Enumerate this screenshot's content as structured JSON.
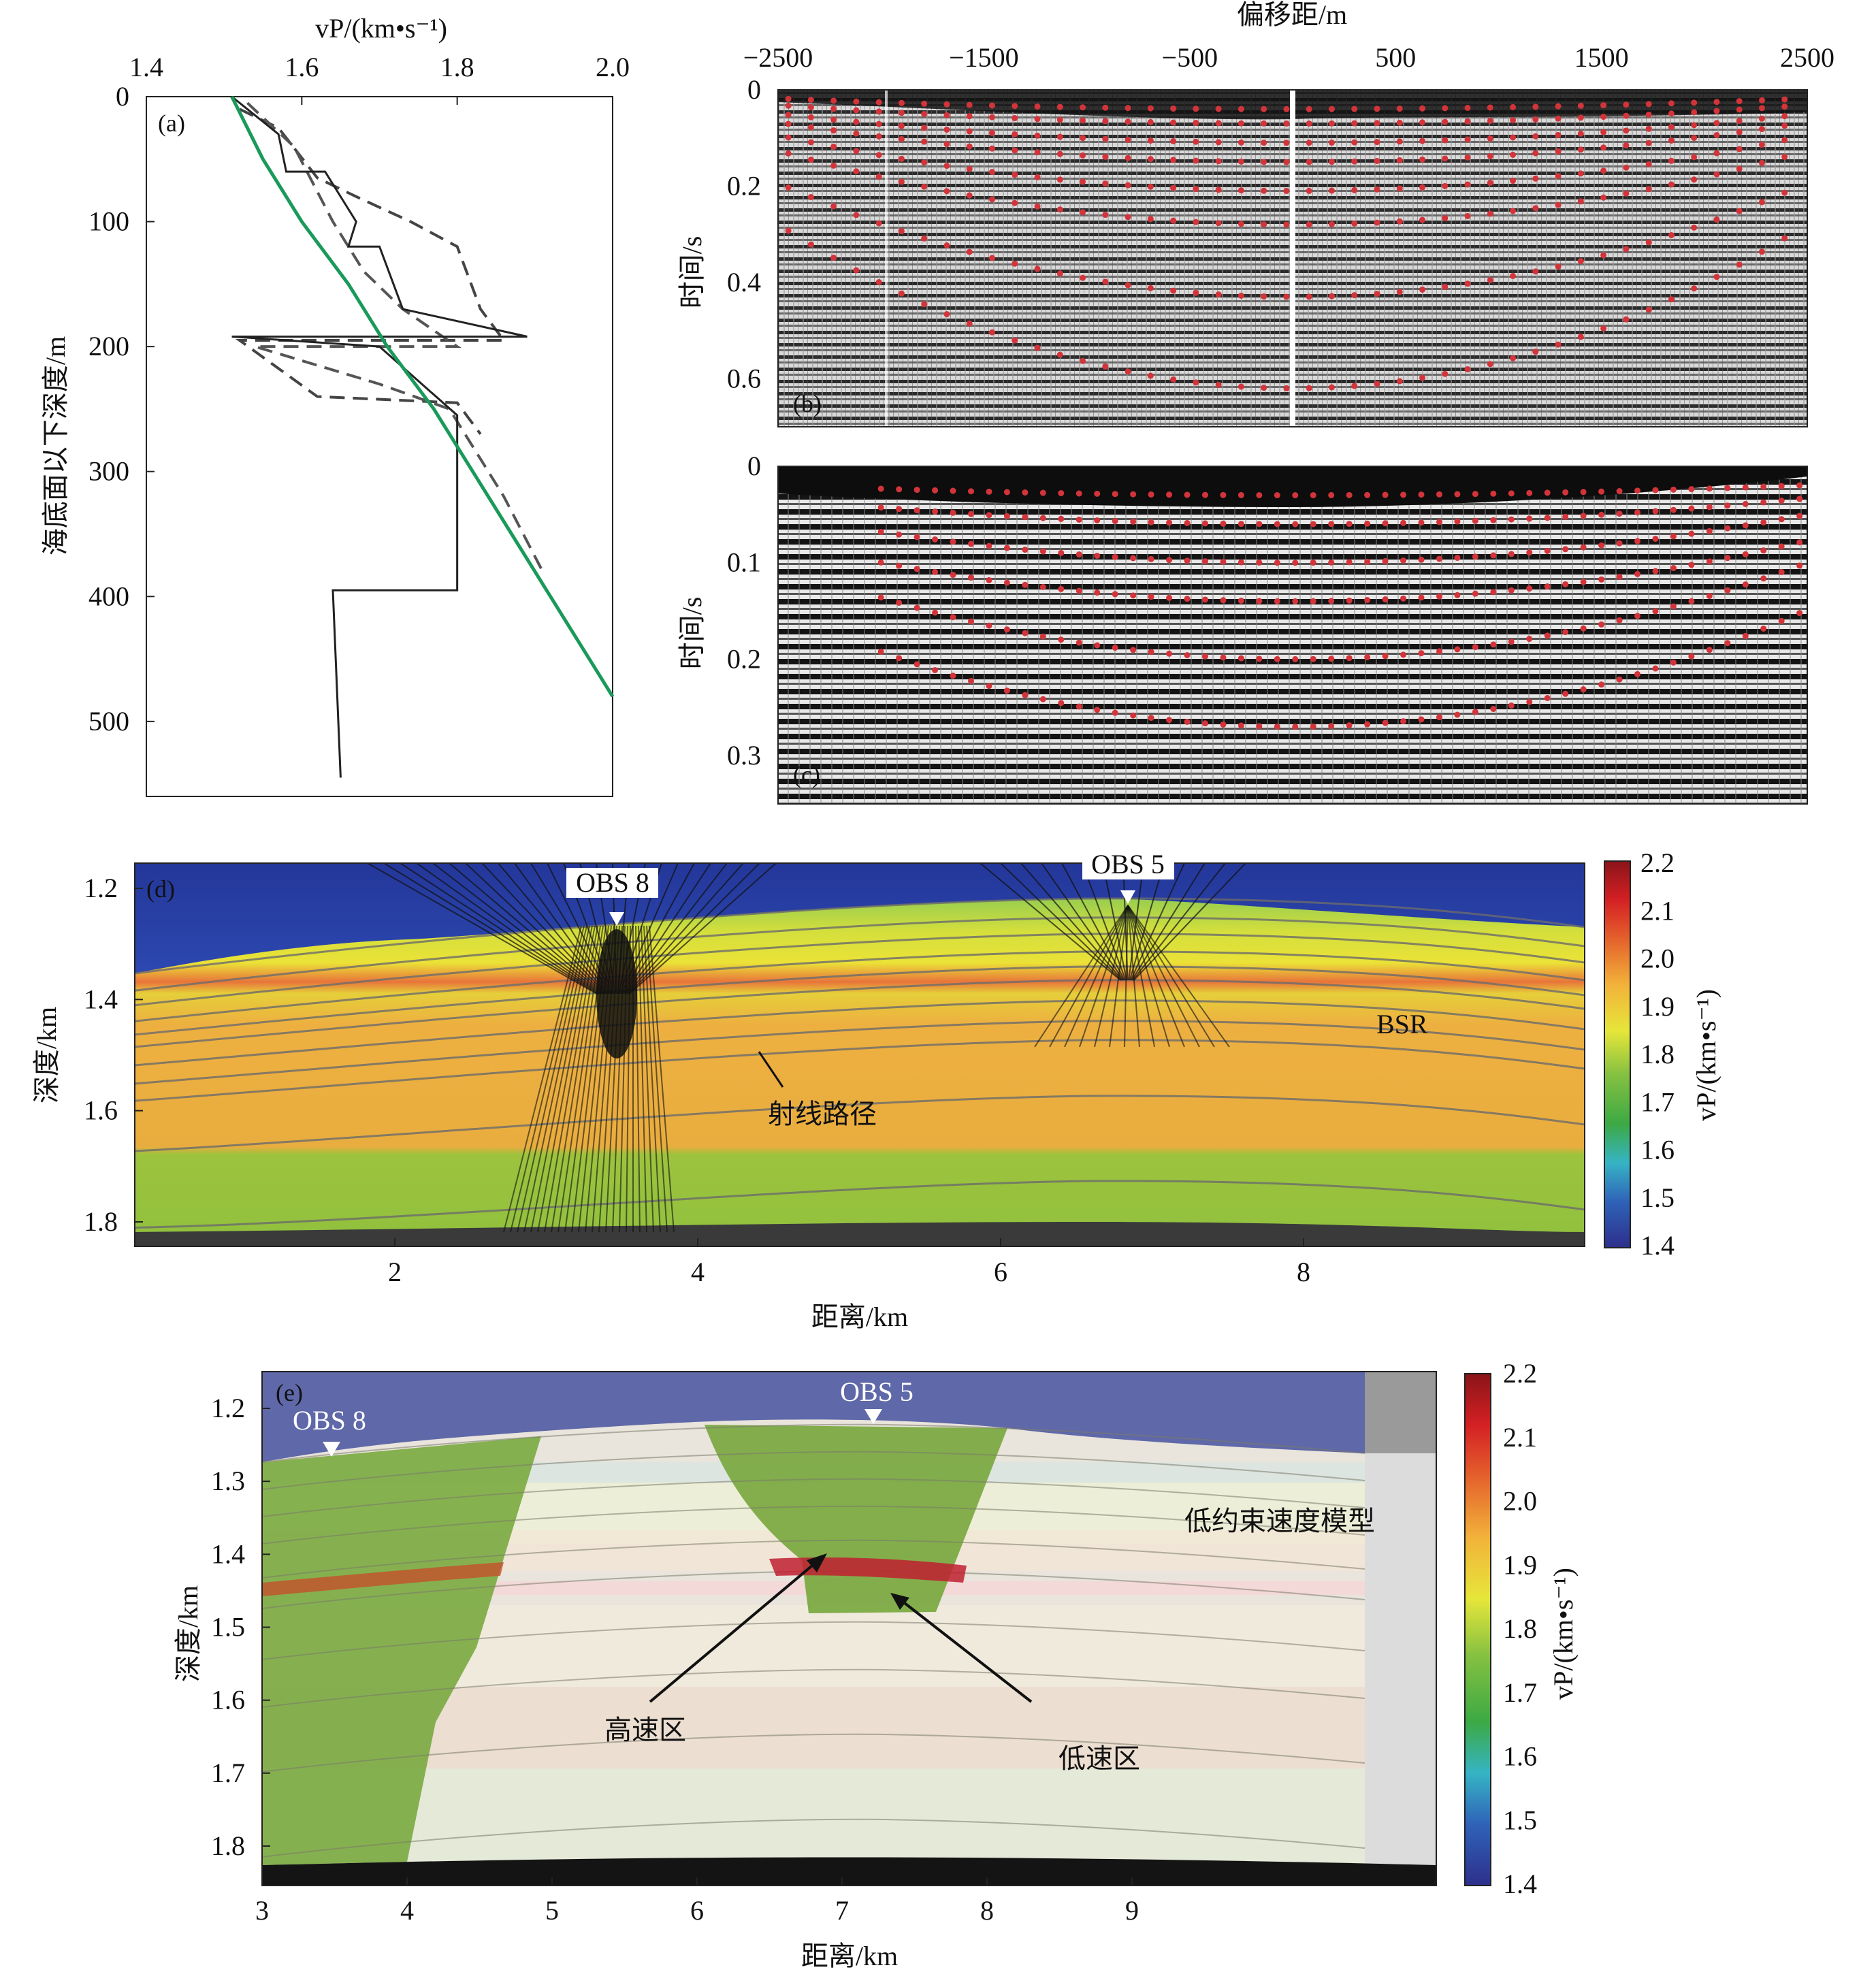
{
  "panel_a": {
    "tag": "(a)",
    "xaxis_title": "vP/(km•s⁻¹)",
    "yaxis_title": "海底面以下深度/m",
    "xticks": [
      "1.4",
      "1.6",
      "1.8",
      "2.0"
    ],
    "yticks": [
      "0",
      "100",
      "200",
      "300",
      "400",
      "500"
    ],
    "xlim": [
      1.4,
      2.0
    ],
    "ylim": [
      0,
      560
    ],
    "curves": {
      "green_trend": [
        [
          1.51,
          0
        ],
        [
          1.55,
          50
        ],
        [
          1.6,
          100
        ],
        [
          1.66,
          150
        ],
        [
          1.71,
          200
        ],
        [
          1.77,
          250
        ],
        [
          1.82,
          300
        ],
        [
          1.87,
          350
        ],
        [
          1.92,
          400
        ],
        [
          1.97,
          450
        ],
        [
          2.0,
          480
        ]
      ],
      "solid_profile": [
        [
          1.51,
          0
        ],
        [
          1.57,
          30
        ],
        [
          1.58,
          60
        ],
        [
          1.63,
          60
        ],
        [
          1.67,
          100
        ],
        [
          1.66,
          120
        ],
        [
          1.7,
          120
        ],
        [
          1.73,
          170
        ],
        [
          1.89,
          192
        ],
        [
          1.51,
          192
        ],
        [
          1.7,
          200
        ],
        [
          1.8,
          255
        ],
        [
          1.8,
          395
        ],
        [
          1.64,
          395
        ],
        [
          1.65,
          545
        ]
      ],
      "dashed_profile_1": [
        [
          1.52,
          10
        ],
        [
          1.57,
          25
        ],
        [
          1.62,
          65
        ],
        [
          1.67,
          80
        ],
        [
          1.74,
          100
        ],
        [
          1.8,
          120
        ],
        [
          1.83,
          170
        ],
        [
          1.86,
          195
        ],
        [
          1.52,
          195
        ],
        [
          1.62,
          240
        ],
        [
          1.8,
          245
        ],
        [
          1.83,
          270
        ]
      ],
      "dashed_profile_2": [
        [
          1.53,
          5
        ],
        [
          1.59,
          40
        ],
        [
          1.64,
          100
        ],
        [
          1.68,
          140
        ],
        [
          1.73,
          170
        ],
        [
          1.8,
          200
        ],
        [
          1.54,
          200
        ],
        [
          1.7,
          230
        ],
        [
          1.79,
          250
        ],
        [
          1.86,
          320
        ],
        [
          1.91,
          380
        ]
      ]
    }
  },
  "panel_b": {
    "tag": "(b)",
    "top_axis_title": "偏移距/m",
    "xticks": [
      "−2500",
      "−1500",
      "−500",
      "500",
      "1500",
      "2500"
    ],
    "yaxis_title": "时间/s",
    "yticks": [
      "0",
      "0.2",
      "0.4",
      "0.6"
    ],
    "xlim": [
      -2500,
      2500
    ],
    "ylim": [
      0,
      0.7
    ]
  },
  "panel_c": {
    "tag": "(c)",
    "yaxis_title": "时间/s",
    "yticks": [
      "0",
      "0.1",
      "0.2",
      "0.3"
    ],
    "ylim": [
      0,
      0.35
    ]
  },
  "panel_d": {
    "tag": "(d)",
    "obs_left": "OBS 8",
    "obs_right": "OBS 5",
    "bsr_label": "BSR",
    "ray_label": "射线路径",
    "yaxis_title": "深度/km",
    "xaxis_title": "距离/km",
    "xticks": [
      "2",
      "4",
      "6",
      "8"
    ],
    "yticks": [
      "1.2",
      "1.4",
      "1.6",
      "1.8"
    ],
    "colorbar_title": "vP/(km•s⁻¹)",
    "colorbar_ticks": [
      "2.2",
      "2.1",
      "2.0",
      "1.9",
      "1.8",
      "1.7",
      "1.6",
      "1.5",
      "1.4"
    ]
  },
  "panel_e": {
    "tag": "(e)",
    "obs_left": "OBS 8",
    "obs_right": "OBS 5",
    "model_label": "低约束速度模型",
    "high_label": "高速区",
    "low_label": "低速区",
    "yaxis_title": "深度/km",
    "xaxis_title": "距离/km",
    "xticks": [
      "3",
      "4",
      "5",
      "6",
      "7",
      "8",
      "9"
    ],
    "yticks": [
      "1.2",
      "1.3",
      "1.4",
      "1.5",
      "1.6",
      "1.7",
      "1.8"
    ],
    "colorbar_title": "vP/(km•s⁻¹)",
    "colorbar_ticks": [
      "2.2",
      "2.1",
      "2.0",
      "1.9",
      "1.8",
      "1.7",
      "1.6",
      "1.5",
      "1.4"
    ]
  },
  "colors": {
    "water": "#2b3f9c",
    "velocity_low": "#2d3592",
    "velocity_high": "#c81c1c",
    "picks": "#d3343a",
    "trend": "#1a9a5a"
  }
}
